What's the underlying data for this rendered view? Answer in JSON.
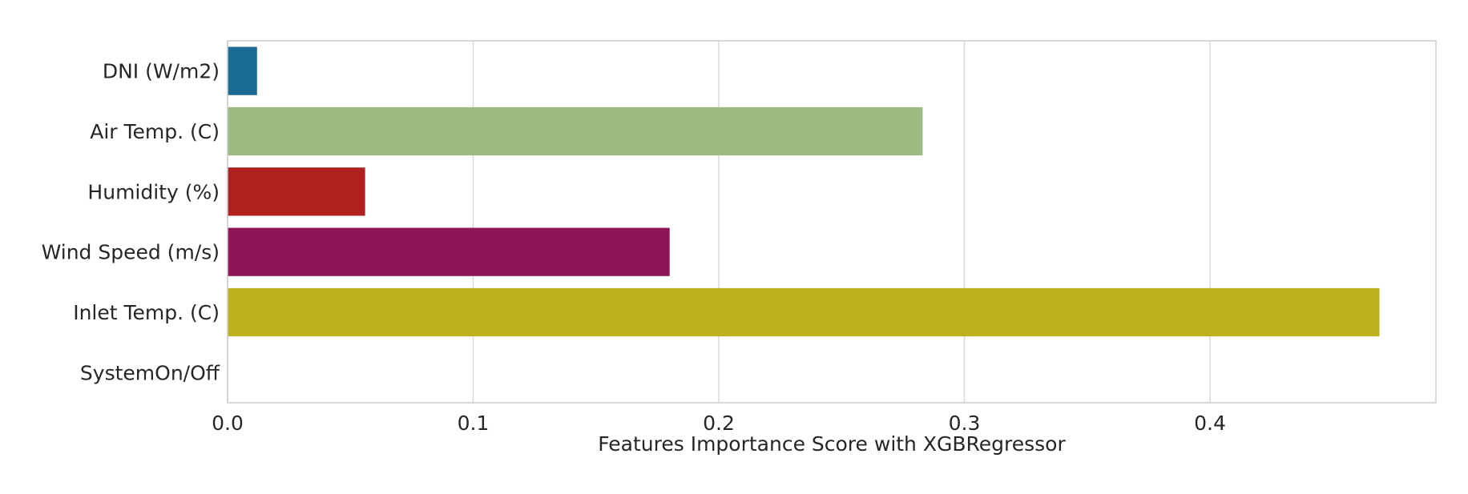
{
  "chart_data": {
    "type": "bar",
    "orientation": "horizontal",
    "title": "",
    "xlabel": "Features Importance Score with XGBRegressor",
    "ylabel": "",
    "categories": [
      "DNI (W/m2)",
      "Air Temp. (C)",
      "Humidity (%)",
      "Wind Speed (m/s)",
      "Inlet Temp. (C)",
      "SystemOn/Off"
    ],
    "values": [
      0.012,
      0.283,
      0.056,
      0.18,
      0.469,
      0.0
    ],
    "colors": [
      "#1a6b94",
      "#9dbb80",
      "#b0211e",
      "#8f1557",
      "#bdb11d",
      "#1a6b94"
    ],
    "xlim": [
      0.0,
      0.492
    ],
    "xticks": [
      0.0,
      0.1,
      0.2,
      0.3,
      0.4
    ],
    "xtick_labels": [
      "0.0",
      "0.1",
      "0.2",
      "0.3",
      "0.4"
    ],
    "grid": true,
    "grid_axis": "x",
    "legend": false
  }
}
